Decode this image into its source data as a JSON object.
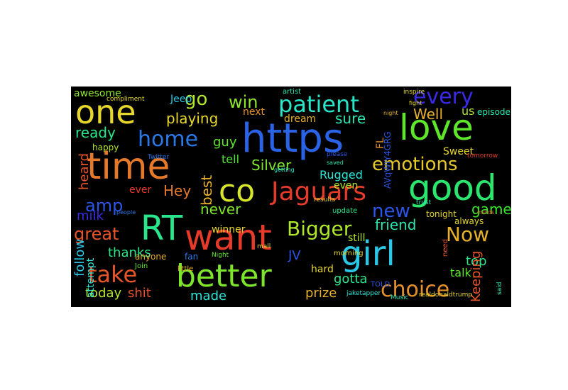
{
  "background_color": "#000000",
  "words": [
    {
      "text": "https",
      "color": "#2a63e6",
      "rotate": false
    },
    {
      "text": "love",
      "color": "#5ee62a",
      "rotate": false
    },
    {
      "text": "good",
      "color": "#2ae66e",
      "rotate": false
    },
    {
      "text": "time",
      "color": "#e6782a",
      "rotate": false
    },
    {
      "text": "one",
      "color": "#e6d72a",
      "rotate": false
    },
    {
      "text": "want",
      "color": "#e63a2a",
      "rotate": false
    },
    {
      "text": "better",
      "color": "#7ee62a",
      "rotate": false
    },
    {
      "text": "girl",
      "color": "#2ac8e6",
      "rotate": false
    },
    {
      "text": "RT",
      "color": "#2ae68a",
      "rotate": false
    },
    {
      "text": "co",
      "color": "#d7e62a",
      "rotate": false
    },
    {
      "text": "Jaguars",
      "color": "#e63a2a",
      "rotate": false
    },
    {
      "text": "every",
      "color": "#3a2ae6",
      "rotate": false
    },
    {
      "text": "patient",
      "color": "#2ae6c8",
      "rotate": false
    },
    {
      "text": "home",
      "color": "#2a78e6",
      "rotate": false
    },
    {
      "text": "take",
      "color": "#e6552a",
      "rotate": false
    },
    {
      "text": "choice",
      "color": "#e6902a",
      "rotate": false
    },
    {
      "text": "go",
      "color": "#b2e62a",
      "rotate": false
    },
    {
      "text": "win",
      "color": "#90e62a",
      "rotate": false
    },
    {
      "text": "emotions",
      "color": "#e6c82a",
      "rotate": false
    },
    {
      "text": "Bigger",
      "color": "#aee62a",
      "rotate": false
    },
    {
      "text": "new",
      "color": "#2a55e6",
      "rotate": false
    },
    {
      "text": "Now",
      "color": "#e6b02a",
      "rotate": false
    },
    {
      "text": "amp",
      "color": "#2a55e6",
      "rotate": false
    },
    {
      "text": "great",
      "color": "#e6552a",
      "rotate": false
    },
    {
      "text": "sure",
      "color": "#2ae6b0",
      "rotate": false
    },
    {
      "text": "Well",
      "color": "#e6b02a",
      "rotate": false
    },
    {
      "text": "playing",
      "color": "#e6d72a",
      "rotate": false
    },
    {
      "text": "ready",
      "color": "#2ae68a",
      "rotate": false
    },
    {
      "text": "Silver",
      "color": "#7ee62a",
      "rotate": false
    },
    {
      "text": "guy",
      "color": "#5ee62a",
      "rotate": false
    },
    {
      "text": "tell",
      "color": "#4ae62a",
      "rotate": false
    },
    {
      "text": "Hey",
      "color": "#e6782a",
      "rotate": false
    },
    {
      "text": "never",
      "color": "#7ee62a",
      "rotate": false
    },
    {
      "text": "friend",
      "color": "#2ae6b0",
      "rotate": false
    },
    {
      "text": "Rugged",
      "color": "#2ae6d7",
      "rotate": false
    },
    {
      "text": "game",
      "color": "#3ae62a",
      "rotate": false
    },
    {
      "text": "milk",
      "color": "#3a2ae6",
      "rotate": false
    },
    {
      "text": "thanks",
      "color": "#2ae68a",
      "rotate": false
    },
    {
      "text": "made",
      "color": "#2ae6d7",
      "rotate": false
    },
    {
      "text": "today",
      "color": "#b2e62a",
      "rotate": false
    },
    {
      "text": "shit",
      "color": "#e6552a",
      "rotate": false
    },
    {
      "text": "prize",
      "color": "#e6b02a",
      "rotate": false
    },
    {
      "text": "gotta",
      "color": "#2ae68a",
      "rotate": false
    },
    {
      "text": "top",
      "color": "#2ae68a",
      "rotate": false
    },
    {
      "text": "talk",
      "color": "#5ee62a",
      "rotate": false
    },
    {
      "text": "Sweet",
      "color": "#e6d72a",
      "rotate": false
    },
    {
      "text": "us",
      "color": "#b2e62a",
      "rotate": false
    },
    {
      "text": "dream",
      "color": "#e6b02a",
      "rotate": false
    },
    {
      "text": "next",
      "color": "#e6902a",
      "rotate": false
    },
    {
      "text": "awesome",
      "color": "#90e62a",
      "rotate": false
    },
    {
      "text": "Jeep",
      "color": "#2ac8e6",
      "rotate": false
    },
    {
      "text": "episode",
      "color": "#2ae6b0",
      "rotate": false
    },
    {
      "text": "JV",
      "color": "#2a55e6",
      "rotate": false
    },
    {
      "text": "winner",
      "color": "#e6d72a",
      "rotate": false
    },
    {
      "text": "ever",
      "color": "#e63a2a",
      "rotate": false
    },
    {
      "text": "even",
      "color": "#b2e62a",
      "rotate": false
    },
    {
      "text": "still",
      "color": "#b2e62a",
      "rotate": false
    },
    {
      "text": "hard",
      "color": "#e6d72a",
      "rotate": false
    },
    {
      "text": "tonight",
      "color": "#e6d72a",
      "rotate": false
    },
    {
      "text": "always",
      "color": "#e6d72a",
      "rotate": false
    },
    {
      "text": "update",
      "color": "#2ae68a",
      "rotate": false
    },
    {
      "text": "fan",
      "color": "#2a78e6",
      "rotate": false
    },
    {
      "text": "anyone",
      "color": "#e6b02a",
      "rotate": false
    },
    {
      "text": "happy",
      "color": "#b2e62a",
      "rotate": false
    },
    {
      "text": "artist",
      "color": "#2ae6b0",
      "rotate": false
    },
    {
      "text": "follow",
      "color": "#2ac8e6",
      "rotate": true
    },
    {
      "text": "attempt",
      "color": "#2ae6d7",
      "rotate": true
    },
    {
      "text": "best",
      "color": "#e6b02a",
      "rotate": true
    },
    {
      "text": "heard",
      "color": "#e6552a",
      "rotate": true
    },
    {
      "text": "FL",
      "color": "#e6902a",
      "rotate": true
    },
    {
      "text": "Keeping",
      "color": "#e6552a",
      "rotate": true
    },
    {
      "text": "AVqWIY4GRG",
      "color": "#2a55e6",
      "rotate": true
    },
    {
      "text": "TOLD",
      "color": "#2a55e6",
      "rotate": false
    },
    {
      "text": "Join",
      "color": "#5ee62a",
      "rotate": false
    },
    {
      "text": "little",
      "color": "#e6b02a",
      "rotate": false
    },
    {
      "text": "morning",
      "color": "#e6d72a",
      "rotate": false
    },
    {
      "text": "compliment",
      "color": "#e6d72a",
      "rotate": false
    },
    {
      "text": "inspire",
      "color": "#e6d72a",
      "rotate": false
    },
    {
      "text": "need",
      "color": "#e6552a",
      "rotate": true
    },
    {
      "text": "trust",
      "color": "#2ae6b0",
      "rotate": false
    },
    {
      "text": "tomorrow",
      "color": "#e63a2a",
      "rotate": false
    },
    {
      "text": "jaketapper",
      "color": "#2ae6d7",
      "rotate": false
    },
    {
      "text": "realdonaldtrump",
      "color": "#e6d72a",
      "rotate": false
    },
    {
      "text": "Twitter",
      "color": "#2a78e6",
      "rotate": false
    },
    {
      "text": "people",
      "color": "#2a78e6",
      "rotate": false
    },
    {
      "text": "Night",
      "color": "#5ee62a",
      "rotate": false
    },
    {
      "text": "results",
      "color": "#e6d72a",
      "rotate": false
    },
    {
      "text": "minds",
      "color": "#e6552a",
      "rotate": false
    },
    {
      "text": "saved",
      "color": "#2ae6b0",
      "rotate": false
    },
    {
      "text": "please",
      "color": "#2a55e6",
      "rotate": false
    },
    {
      "text": "Music",
      "color": "#2ae6b0",
      "rotate": false
    },
    {
      "text": "mall",
      "color": "#e6d72a",
      "rotate": false
    },
    {
      "text": "said",
      "color": "#2ae6b0",
      "rotate": true
    },
    {
      "text": "fight",
      "color": "#e6d72a",
      "rotate": false
    },
    {
      "text": "getting",
      "color": "#2ae6d7",
      "rotate": false
    },
    {
      "text": "night",
      "color": "#e6b02a",
      "rotate": false
    }
  ]
}
